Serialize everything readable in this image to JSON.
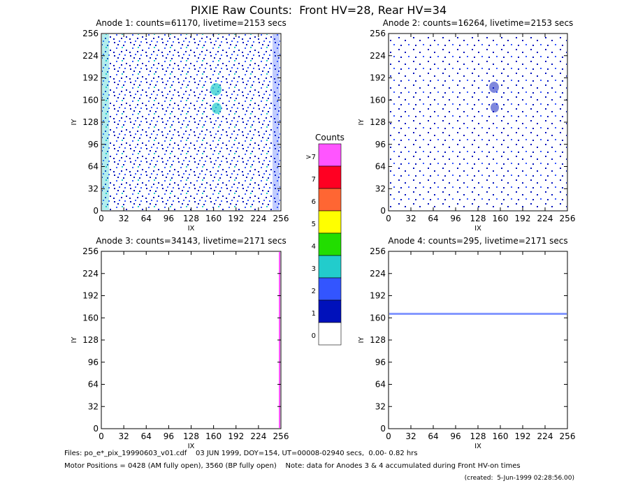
{
  "title": "PIXIE Raw Counts:  Front HV=28, Rear HV=34",
  "chart_data": [
    {
      "type": "heatmap",
      "title": "Anode 1: counts=61170, livetime=2153 secs",
      "xlabel": "IX",
      "ylabel": "IY",
      "xlim": [
        0,
        256
      ],
      "ylim": [
        0,
        256
      ],
      "xticks": [
        0,
        32,
        64,
        96,
        128,
        160,
        192,
        224,
        256
      ],
      "yticks": [
        0,
        32,
        64,
        96,
        128,
        160,
        192,
        224,
        256
      ]
    },
    {
      "type": "heatmap",
      "title": "Anode 2: counts=16264, livetime=2153 secs",
      "xlabel": "IX",
      "ylabel": "IY",
      "xlim": [
        0,
        256
      ],
      "ylim": [
        0,
        256
      ],
      "xticks": [
        0,
        32,
        64,
        96,
        128,
        160,
        192,
        224,
        256
      ],
      "yticks": [
        0,
        32,
        64,
        96,
        128,
        160,
        192,
        224,
        256
      ]
    },
    {
      "type": "heatmap",
      "title": "Anode 3: counts=34143, livetime=2171 secs",
      "xlabel": "IX",
      "ylabel": "IY",
      "xlim": [
        0,
        256
      ],
      "ylim": [
        0,
        256
      ],
      "xticks": [
        0,
        32,
        64,
        96,
        128,
        160,
        192,
        224,
        256
      ],
      "yticks": [
        0,
        32,
        64,
        96,
        128,
        160,
        192,
        224,
        256
      ]
    },
    {
      "type": "heatmap",
      "title": "Anode 4: counts=295, livetime=2171 secs",
      "xlabel": "IX",
      "ylabel": "IY",
      "xlim": [
        0,
        256
      ],
      "ylim": [
        0,
        256
      ],
      "xticks": [
        0,
        32,
        64,
        96,
        128,
        160,
        192,
        224,
        256
      ],
      "yticks": [
        0,
        32,
        64,
        96,
        128,
        160,
        192,
        224,
        256
      ]
    }
  ],
  "colorbar": {
    "title": "Counts",
    "labels": [
      ">7",
      "7",
      "6",
      "5",
      "4",
      "3",
      "2",
      "1",
      "0"
    ],
    "colors": [
      "#ff55ff",
      "#ff0022",
      "#ff6633",
      "#ffff00",
      "#22dd00",
      "#22cccc",
      "#3355ff",
      "#0011bb",
      "#ffffff"
    ]
  },
  "footer": [
    "Files: po_e*_pix_19990603_v01.cdf    03 JUN 1999, DOY=154, UT=00008-02940 secs,  0.00- 0.82 hrs",
    "Motor Positions = 0428 (AM fully open), 3560 (BP fully open)    Note: data for Anodes 3 & 4 accumulated during Front HV-on times",
    "(created:  5-Jun-1999 02:28:56.00)"
  ]
}
